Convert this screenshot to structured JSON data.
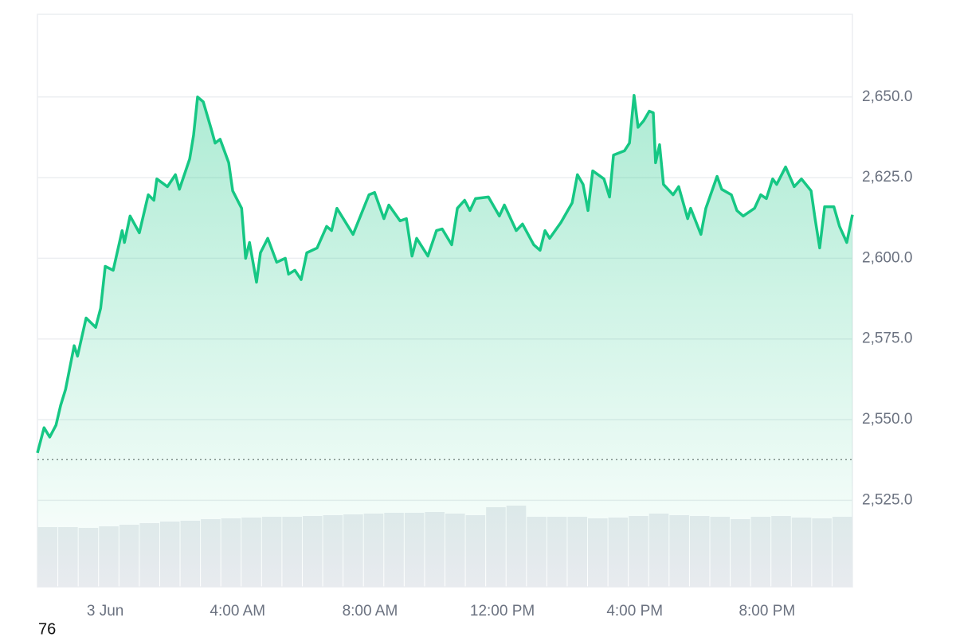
{
  "chart_data": {
    "type": "area",
    "color": "#16c784",
    "x": [
      -2.05,
      -1.85,
      -1.68,
      -1.49,
      -1.35,
      -1.2,
      -0.94,
      -0.84,
      -0.58,
      -0.29,
      -0.14,
      0,
      0.24,
      0.51,
      0.58,
      0.75,
      1.03,
      1.3,
      1.47,
      1.56,
      1.88,
      2.12,
      2.24,
      2.55,
      2.67,
      2.79,
      2.96,
      3.2,
      3.32,
      3.47,
      3.73,
      3.85,
      4.12,
      4.24,
      4.36,
      4.57,
      4.69,
      4.91,
      5.18,
      5.44,
      5.54,
      5.73,
      5.92,
      6.09,
      6.4,
      6.69,
      6.84,
      7.0,
      7.49,
      7.97,
      8.14,
      8.42,
      8.57,
      8.91,
      9.1,
      9.27,
      9.41,
      9.75,
      10.01,
      10.18,
      10.47,
      10.64,
      10.86,
      11.02,
      11.19,
      11.58,
      11.91,
      12.06,
      12.42,
      12.61,
      12.95,
      13.14,
      13.29,
      13.43,
      13.77,
      14.11,
      14.27,
      14.44,
      14.59,
      14.73,
      15.07,
      15.24,
      15.36,
      15.69,
      15.84,
      15.98,
      16.1,
      16.27,
      16.44,
      16.56,
      16.63,
      16.75,
      16.87,
      17.16,
      17.33,
      17.6,
      17.69,
      18.0,
      18.15,
      18.49,
      18.63,
      18.92,
      19.09,
      19.28,
      19.62,
      19.81,
      19.98,
      20.17,
      20.29,
      20.56,
      20.82,
      21.04,
      21.33,
      21.45,
      21.59,
      21.74,
      22.02,
      22.19,
      22.41,
      22.58
    ],
    "values": [
      2539.7,
      2547.5,
      2544.6,
      2548.3,
      2554.4,
      2559.4,
      2572.9,
      2569.7,
      2581.5,
      2578.6,
      2584.5,
      2597.5,
      2596.3,
      2608.6,
      2604.9,
      2613.1,
      2607.9,
      2619.7,
      2618.0,
      2624.6,
      2622.2,
      2625.9,
      2621.4,
      2630.8,
      2638.2,
      2650.0,
      2648.5,
      2640.1,
      2635.7,
      2636.9,
      2629.6,
      2620.9,
      2615.5,
      2600.0,
      2604.9,
      2592.6,
      2601.7,
      2606.2,
      2598.8,
      2600.0,
      2595.1,
      2596.3,
      2593.4,
      2601.7,
      2603.2,
      2609.9,
      2608.6,
      2615.5,
      2607.4,
      2619.7,
      2620.4,
      2612.3,
      2616.5,
      2611.6,
      2612.3,
      2600.7,
      2606.2,
      2600.7,
      2608.6,
      2609.1,
      2604.2,
      2615.5,
      2618.0,
      2614.8,
      2618.5,
      2619.0,
      2613.1,
      2616.5,
      2608.6,
      2610.6,
      2604.2,
      2602.5,
      2608.6,
      2606.2,
      2611.1,
      2617.2,
      2625.9,
      2622.9,
      2614.8,
      2627.1,
      2624.6,
      2619.0,
      2632.0,
      2633.3,
      2635.7,
      2650.5,
      2640.6,
      2642.6,
      2645.6,
      2645.1,
      2629.6,
      2635.2,
      2622.9,
      2619.7,
      2622.2,
      2612.3,
      2615.5,
      2607.4,
      2615.5,
      2625.4,
      2621.4,
      2619.7,
      2614.8,
      2613.1,
      2615.5,
      2619.7,
      2618.5,
      2624.6,
      2622.9,
      2628.3,
      2622.2,
      2624.6,
      2620.9,
      2612.3,
      2603.2,
      2616.0,
      2616.0,
      2609.9,
      2604.9,
      2613.5
    ],
    "baseline": 2537.6,
    "xlim": [
      -2.05,
      22.58
    ],
    "ylim": [
      2498.2,
      2675.6
    ],
    "xticks": [
      {
        "value": 0,
        "label": "3 Jun"
      },
      {
        "value": 4,
        "label": "4:00 AM"
      },
      {
        "value": 8,
        "label": "8:00 AM"
      },
      {
        "value": 12,
        "label": "12:00 PM"
      },
      {
        "value": 16,
        "label": "4:00 PM"
      },
      {
        "value": 20,
        "label": "8:00 PM"
      }
    ],
    "yticks": [
      {
        "value": 2525,
        "label": "2,525.0"
      },
      {
        "value": 2550,
        "label": "2,550.0"
      },
      {
        "value": 2575,
        "label": "2,575.0"
      },
      {
        "value": 2600,
        "label": "2,600.0"
      },
      {
        "value": 2625,
        "label": "2,625.0"
      },
      {
        "value": 2650,
        "label": "2,650.0"
      }
    ],
    "grid": true,
    "volume": {
      "color": "#e8ebef",
      "ylim": [
        0,
        100
      ],
      "values": [
        75,
        75,
        74,
        76,
        78,
        80,
        82,
        83,
        85,
        86,
        87,
        88,
        88,
        89,
        90,
        91,
        92,
        93,
        93,
        94,
        92,
        90,
        100,
        102,
        88,
        88,
        88,
        86,
        87,
        89,
        92,
        90,
        89,
        88,
        85,
        88,
        89,
        87,
        86,
        88
      ]
    },
    "footer": "76"
  }
}
